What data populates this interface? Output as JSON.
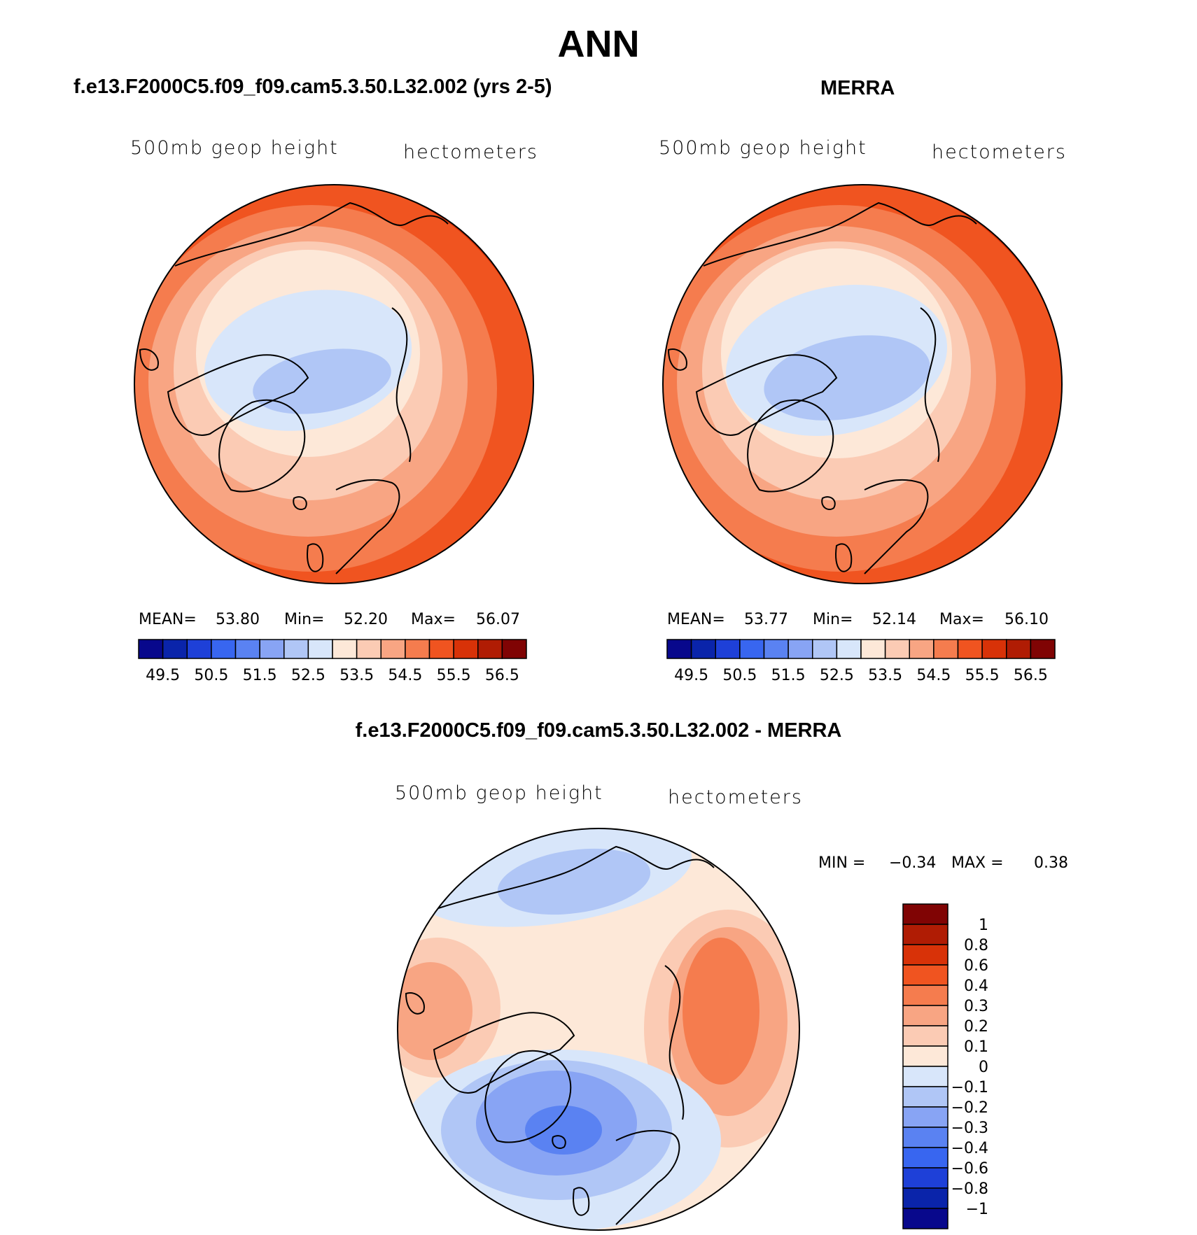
{
  "figure": {
    "title": "ANN"
  },
  "panels": [
    {
      "title": "f.e13.F2000C5.f09_f09.cam5.3.50.L32.002 (yrs 2-5)",
      "left_label": "500mb geop height",
      "right_label": "hectometers",
      "stats": {
        "mean_label": "MEAN=",
        "mean": "53.80",
        "min_label": "Min=",
        "min": "52.20",
        "max_label": "Max=",
        "max": "56.07"
      }
    },
    {
      "title": "MERRA",
      "left_label": "500mb geop height",
      "right_label": "hectometers",
      "stats": {
        "mean_label": "MEAN=",
        "mean": "53.77",
        "min_label": "Min=",
        "min": "52.14",
        "max_label": "Max=",
        "max": "56.10"
      }
    },
    {
      "title": "f.e13.F2000C5.f09_f09.cam5.3.50.L32.002 - MERRA",
      "left_label": "500mb geop height",
      "right_label": "hectometers",
      "stats": {
        "min_label": "MIN =",
        "min": "−0.34",
        "max_label": "MAX =",
        "max": "0.38"
      }
    }
  ],
  "chart_data": [
    {
      "type": "heatmap",
      "projection": "north polar stereographic",
      "variable": "500mb geop height",
      "units": "hectometers",
      "mean": 53.8,
      "min": 52.2,
      "max": 56.07,
      "colorbar": {
        "orientation": "horizontal",
        "levels": [
          49.5,
          50,
          50.5,
          51,
          51.5,
          52,
          52.5,
          53,
          53.5,
          54,
          54.5,
          55,
          55.5,
          56,
          56.5
        ],
        "tick_labels": [
          "49.5",
          "50.5",
          "51.5",
          "52.5",
          "53.5",
          "54.5",
          "55.5",
          "56.5"
        ],
        "colors": [
          "#08088c",
          "#0a24aa",
          "#1e40d8",
          "#3866f0",
          "#5a82f2",
          "#88a4f4",
          "#b0c6f6",
          "#d8e6fa",
          "#fde8d8",
          "#fbcbb4",
          "#f8a583",
          "#f57c4e",
          "#f05420",
          "#d83208",
          "#b01c04",
          "#800404"
        ]
      }
    },
    {
      "type": "heatmap",
      "projection": "north polar stereographic",
      "variable": "500mb geop height",
      "units": "hectometers",
      "mean": 53.77,
      "min": 52.14,
      "max": 56.1,
      "colorbar": {
        "orientation": "horizontal",
        "levels": [
          49.5,
          50,
          50.5,
          51,
          51.5,
          52,
          52.5,
          53,
          53.5,
          54,
          54.5,
          55,
          55.5,
          56,
          56.5
        ],
        "tick_labels": [
          "49.5",
          "50.5",
          "51.5",
          "52.5",
          "53.5",
          "54.5",
          "55.5",
          "56.5"
        ],
        "colors": [
          "#08088c",
          "#0a24aa",
          "#1e40d8",
          "#3866f0",
          "#5a82f2",
          "#88a4f4",
          "#b0c6f6",
          "#d8e6fa",
          "#fde8d8",
          "#fbcbb4",
          "#f8a583",
          "#f57c4e",
          "#f05420",
          "#d83208",
          "#b01c04",
          "#800404"
        ]
      }
    },
    {
      "type": "heatmap",
      "projection": "north polar stereographic",
      "variable": "500mb geop height",
      "units": "hectometers",
      "min": -0.34,
      "max": 0.38,
      "colorbar": {
        "orientation": "vertical",
        "levels": [
          1,
          0.8,
          0.6,
          0.4,
          0.3,
          0.2,
          0.1,
          0,
          -0.1,
          -0.2,
          -0.3,
          -0.4,
          -0.6,
          -0.8,
          -1
        ],
        "tick_labels": [
          "1",
          "0.8",
          "0.6",
          "0.4",
          "0.3",
          "0.2",
          "0.1",
          "0",
          "−0.1",
          "−0.2",
          "−0.3",
          "−0.4",
          "−0.6",
          "−0.8",
          "−1"
        ],
        "colors": [
          "#800404",
          "#b01c04",
          "#d83208",
          "#f05420",
          "#f57c4e",
          "#f8a583",
          "#fbcbb4",
          "#fde8d8",
          "#d8e6fa",
          "#b0c6f6",
          "#88a4f4",
          "#5a82f2",
          "#3866f0",
          "#1e40d8",
          "#0a24aa",
          "#08088c"
        ]
      }
    }
  ]
}
